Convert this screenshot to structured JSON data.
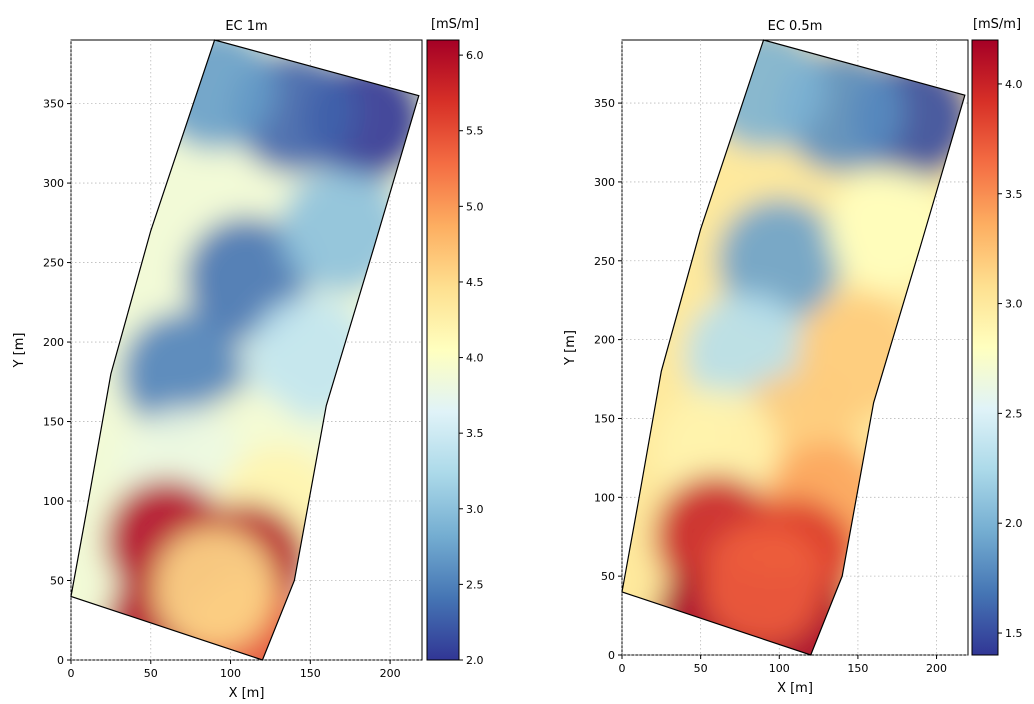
{
  "colors": {
    "scale": [
      "#313695",
      "#4575b4",
      "#74add1",
      "#abd9e9",
      "#e0f3f8",
      "#ffffbf",
      "#fee090",
      "#fdae61",
      "#f46d43",
      "#d73027",
      "#a50026"
    ]
  },
  "chart_data": [
    {
      "type": "heatmap",
      "title": "EC 1m",
      "xlabel": "X [m]",
      "ylabel": "Y [m]",
      "xlim": [
        0,
        220
      ],
      "ylim": [
        0,
        390
      ],
      "x_ticks": [
        "0",
        "50",
        "100",
        "150",
        "200"
      ],
      "y_ticks": [
        "0",
        "50",
        "100",
        "150",
        "200",
        "250",
        "300",
        "350"
      ],
      "grid": true,
      "colormap": "RdYlBu_r",
      "colorbar": {
        "unit": "[mS/m]",
        "range": [
          2.0,
          6.1
        ],
        "ticks": [
          "2.0",
          "2.5",
          "3.0",
          "3.5",
          "4.0",
          "4.5",
          "5.0",
          "5.5",
          "6.0"
        ]
      },
      "field_outline": [
        [
          0,
          40
        ],
        [
          10,
          95
        ],
        [
          25,
          180
        ],
        [
          50,
          270
        ],
        [
          90,
          390
        ],
        [
          218,
          355
        ],
        [
          190,
          260
        ],
        [
          160,
          160
        ],
        [
          140,
          50
        ],
        [
          120,
          0
        ]
      ],
      "zones": [
        {
          "x": 185,
          "y": 340,
          "value": 2.0
        },
        {
          "x": 140,
          "y": 345,
          "value": 2.3
        },
        {
          "x": 90,
          "y": 360,
          "value": 2.7
        },
        {
          "x": 110,
          "y": 240,
          "value": 2.4
        },
        {
          "x": 70,
          "y": 180,
          "value": 2.5
        },
        {
          "x": 170,
          "y": 270,
          "value": 3.0
        },
        {
          "x": 150,
          "y": 190,
          "value": 3.4
        },
        {
          "x": 110,
          "y": 130,
          "value": 3.9
        },
        {
          "x": 70,
          "y": 120,
          "value": 3.8
        },
        {
          "x": 130,
          "y": 95,
          "value": 4.2
        },
        {
          "x": 60,
          "y": 75,
          "value": 6.0
        },
        {
          "x": 110,
          "y": 60,
          "value": 6.0
        },
        {
          "x": 60,
          "y": 20,
          "value": 6.0
        },
        {
          "x": 110,
          "y": 15,
          "value": 5.5
        },
        {
          "x": 90,
          "y": 45,
          "value": 4.5
        }
      ]
    },
    {
      "type": "heatmap",
      "title": "EC 0.5m",
      "xlabel": "X [m]",
      "ylabel": "Y [m]",
      "xlim": [
        0,
        220
      ],
      "ylim": [
        0,
        390
      ],
      "x_ticks": [
        "0",
        "50",
        "100",
        "150",
        "200"
      ],
      "y_ticks": [
        "0",
        "50",
        "100",
        "150",
        "200",
        "250",
        "300",
        "350"
      ],
      "grid": true,
      "colormap": "RdYlBu_r",
      "colorbar": {
        "unit": "[mS/m]",
        "range": [
          1.4,
          4.2
        ],
        "ticks": [
          "1.5",
          "2.0",
          "2.5",
          "3.0",
          "3.5",
          "4.0"
        ]
      },
      "field_outline": [
        [
          0,
          40
        ],
        [
          10,
          95
        ],
        [
          25,
          180
        ],
        [
          50,
          270
        ],
        [
          90,
          390
        ],
        [
          218,
          355
        ],
        [
          190,
          260
        ],
        [
          160,
          160
        ],
        [
          140,
          50
        ],
        [
          120,
          0
        ]
      ],
      "zones": [
        {
          "x": 185,
          "y": 340,
          "value": 1.5
        },
        {
          "x": 140,
          "y": 345,
          "value": 1.8
        },
        {
          "x": 90,
          "y": 360,
          "value": 2.0
        },
        {
          "x": 100,
          "y": 250,
          "value": 1.9
        },
        {
          "x": 80,
          "y": 190,
          "value": 2.3
        },
        {
          "x": 170,
          "y": 270,
          "value": 2.8
        },
        {
          "x": 150,
          "y": 190,
          "value": 3.2
        },
        {
          "x": 110,
          "y": 140,
          "value": 3.2
        },
        {
          "x": 60,
          "y": 130,
          "value": 2.9
        },
        {
          "x": 130,
          "y": 95,
          "value": 3.4
        },
        {
          "x": 60,
          "y": 75,
          "value": 4.0
        },
        {
          "x": 110,
          "y": 60,
          "value": 3.9
        },
        {
          "x": 60,
          "y": 20,
          "value": 4.2
        },
        {
          "x": 110,
          "y": 15,
          "value": 4.2
        },
        {
          "x": 90,
          "y": 45,
          "value": 3.7
        }
      ]
    }
  ]
}
